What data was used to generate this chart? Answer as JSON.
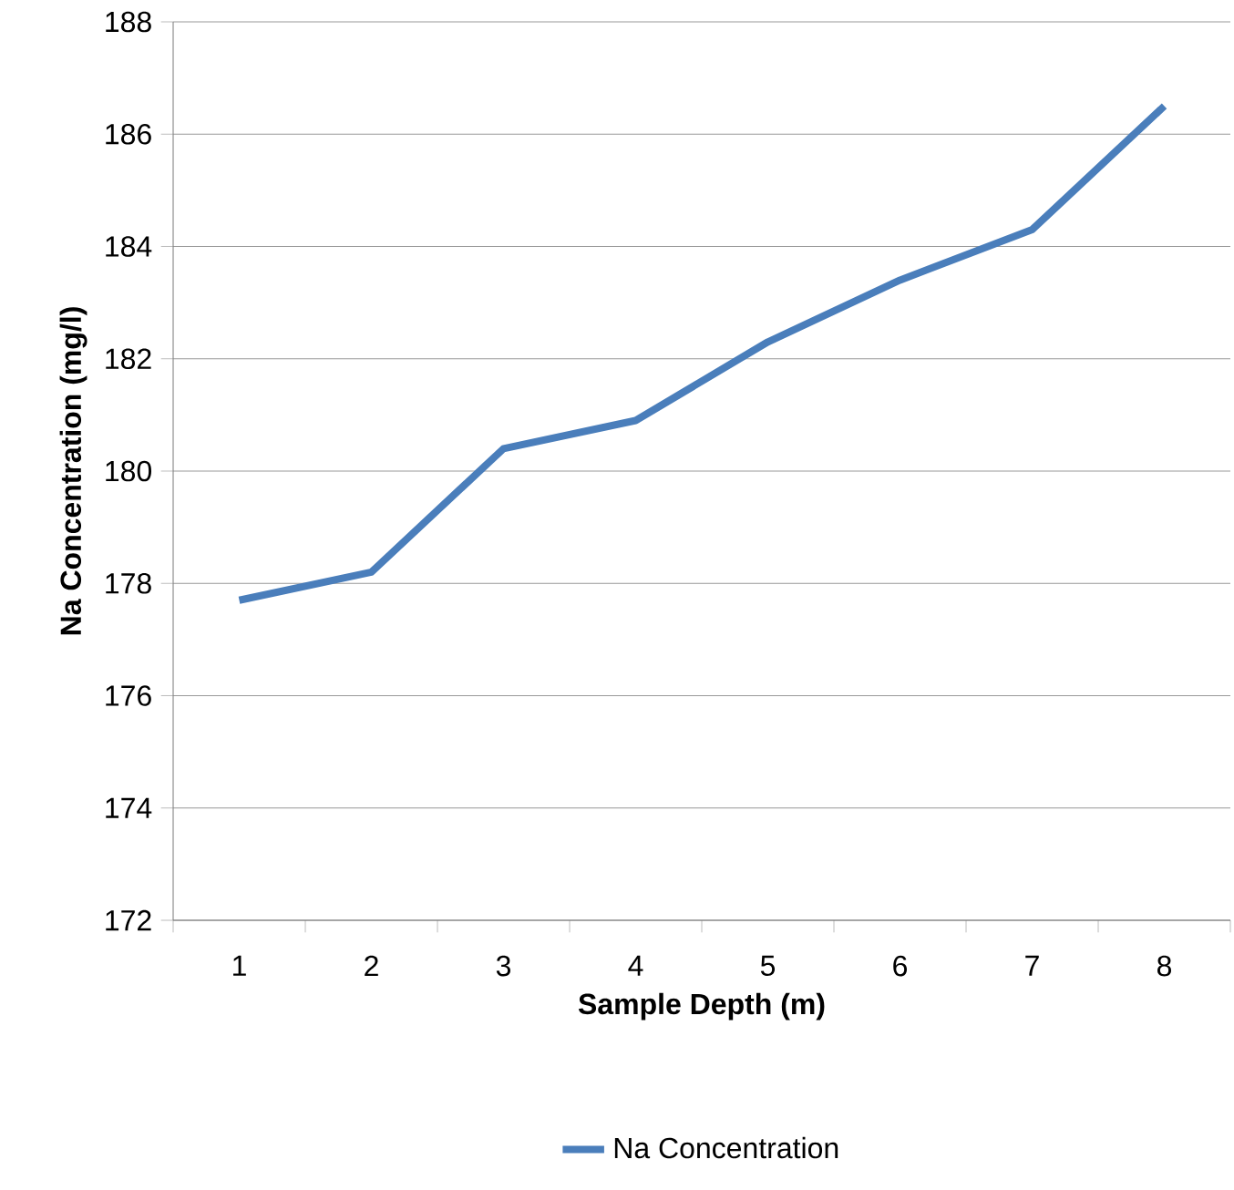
{
  "chart_data": {
    "type": "line",
    "xlabel": "Sample Depth (m)",
    "ylabel": "Na Concentration (mg/l)",
    "categories": [
      "1",
      "2",
      "3",
      "4",
      "5",
      "6",
      "7",
      "8"
    ],
    "series": [
      {
        "name": "Na Concentration",
        "color": "#4a7ebb",
        "values": [
          177.7,
          178.2,
          180.4,
          180.9,
          182.3,
          183.4,
          184.3,
          186.5
        ]
      }
    ],
    "ylim": [
      172,
      188
    ],
    "yticks": [
      172,
      174,
      176,
      178,
      180,
      182,
      184,
      186,
      188
    ],
    "grid": "y",
    "legend": "bottom",
    "marker": "none",
    "line_style": "solid"
  }
}
